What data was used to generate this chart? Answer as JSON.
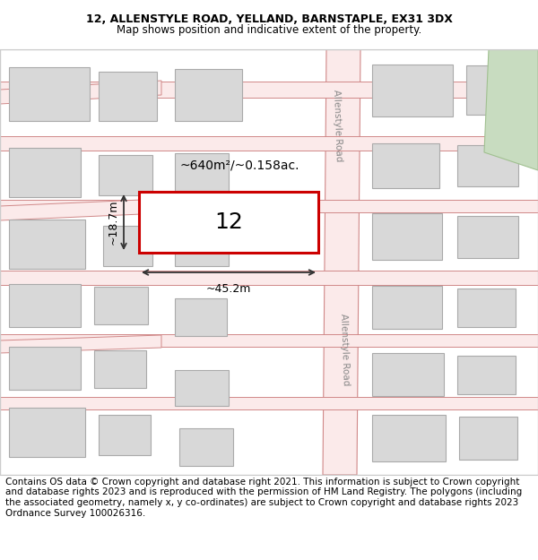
{
  "title_line1": "12, ALLENSTYLE ROAD, YELLAND, BARNSTAPLE, EX31 3DX",
  "title_line2": "Map shows position and indicative extent of the property.",
  "footer_text": "Contains OS data © Crown copyright and database right 2021. This information is subject to Crown copyright and database rights 2023 and is reproduced with the permission of HM Land Registry. The polygons (including the associated geometry, namely x, y co-ordinates) are subject to Crown copyright and database rights 2023 Ordnance Survey 100026316.",
  "map_bg": "#ffffff",
  "map_area_color": "#f5f5f5",
  "road_color": "#f5c0c0",
  "road_line_color": "#e08080",
  "building_color": "#d8d8d8",
  "building_edge_color": "#aaaaaa",
  "highlight_color": "#cc0000",
  "green_area_color": "#c8dcc0",
  "road_label1": "Allenstyle Road",
  "road_label2": "Allenstyle Road",
  "property_label": "12",
  "area_label": "~640m²/~0.158ac.",
  "width_label": "~45.2m",
  "height_label": "~18.7m",
  "title_fontsize": 9,
  "footer_fontsize": 7.5
}
